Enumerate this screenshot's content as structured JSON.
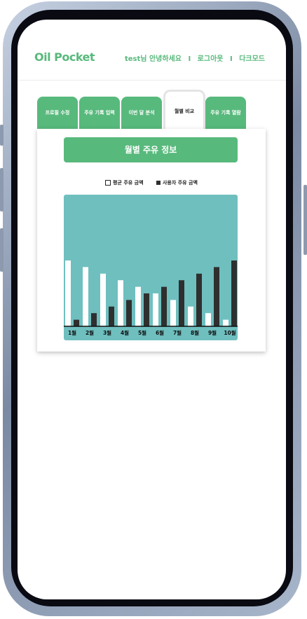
{
  "header": {
    "brand": "Oil Pocket",
    "greeting": "test님 안녕하세요",
    "logout": "로그아웃",
    "dark_mode": "다크모드",
    "separator": "I"
  },
  "tabs": [
    {
      "label": "프로필 수정",
      "active": false
    },
    {
      "label": "주유 기록 입력",
      "active": false
    },
    {
      "label": "이번 달 분석",
      "active": false
    },
    {
      "label": "월별 비교",
      "active": true
    },
    {
      "label": "주유 기록 열람",
      "active": false
    }
  ],
  "card": {
    "title": "월별 주유 정보"
  },
  "colors": {
    "accent": "#58b97c",
    "chart_bg": "#6fbfbf",
    "avg_bar": "#ffffff",
    "user_bar": "#2f2f2f"
  },
  "chart_data": {
    "type": "bar",
    "categories": [
      "1월",
      "2월",
      "3월",
      "4월",
      "5월",
      "6월",
      "7월",
      "8월",
      "9월",
      "10월"
    ],
    "series": [
      {
        "name": "평균 주유 금액",
        "values": [
          100,
          90,
          80,
          70,
          60,
          50,
          40,
          30,
          20,
          10
        ]
      },
      {
        "name": "사용자 주유 금액",
        "values": [
          10,
          20,
          30,
          40,
          50,
          60,
          70,
          80,
          90,
          100
        ]
      }
    ],
    "ylim": [
      0,
      200
    ],
    "grid": false,
    "legend_position": "top"
  }
}
